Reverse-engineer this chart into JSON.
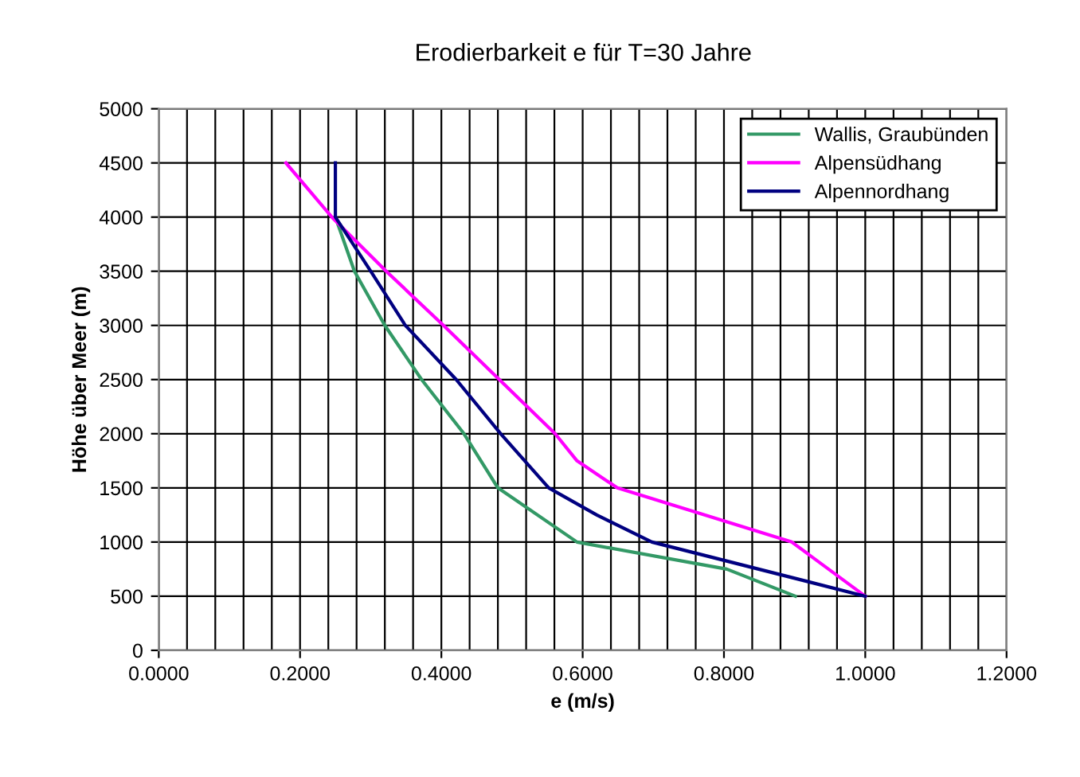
{
  "chart_data": {
    "type": "line",
    "title": "Erodierbarkeit e für T=30 Jahre",
    "xlabel": "e (m/s)",
    "ylabel": "Höhe über Meer (m)",
    "xlim": [
      0,
      1.2
    ],
    "ylim": [
      0,
      5000
    ],
    "xticks": [
      {
        "value": 0,
        "label": "0.0000"
      },
      {
        "value": 0.04,
        "label": null
      },
      {
        "value": 0.08,
        "label": null
      },
      {
        "value": 0.12,
        "label": null
      },
      {
        "value": 0.16,
        "label": null
      },
      {
        "value": 0.2,
        "label": "0.2000"
      },
      {
        "value": 0.24,
        "label": null
      },
      {
        "value": 0.28,
        "label": null
      },
      {
        "value": 0.32,
        "label": null
      },
      {
        "value": 0.36,
        "label": null
      },
      {
        "value": 0.4,
        "label": "0.4000"
      },
      {
        "value": 0.44,
        "label": null
      },
      {
        "value": 0.48,
        "label": null
      },
      {
        "value": 0.52,
        "label": null
      },
      {
        "value": 0.56,
        "label": null
      },
      {
        "value": 0.6,
        "label": "0.6000"
      },
      {
        "value": 0.64,
        "label": null
      },
      {
        "value": 0.68,
        "label": null
      },
      {
        "value": 0.72,
        "label": null
      },
      {
        "value": 0.76,
        "label": null
      },
      {
        "value": 0.8,
        "label": "0.8000"
      },
      {
        "value": 0.84,
        "label": null
      },
      {
        "value": 0.88,
        "label": null
      },
      {
        "value": 0.92,
        "label": null
      },
      {
        "value": 0.96,
        "label": null
      },
      {
        "value": 1.0,
        "label": "1.0000"
      },
      {
        "value": 1.04,
        "label": null
      },
      {
        "value": 1.08,
        "label": null
      },
      {
        "value": 1.12,
        "label": null
      },
      {
        "value": 1.16,
        "label": null
      },
      {
        "value": 1.2,
        "label": "1.2000"
      }
    ],
    "yticks": [
      0,
      500,
      1000,
      1500,
      2000,
      2500,
      3000,
      3500,
      4000,
      4500,
      5000
    ],
    "grid": true,
    "legend": "top right",
    "marker": "none",
    "line_style": "solid",
    "series": [
      {
        "name": "Wallis, Graubünden",
        "color": "#339966",
        "x": [
          0.25,
          0.277,
          0.32,
          0.372,
          0.432,
          0.48,
          0.592,
          0.804,
          0.901
        ],
        "values": [
          4000,
          3500,
          3000,
          2500,
          2000,
          1500,
          1000,
          750,
          500
        ]
      },
      {
        "name": "Alpensüdhang",
        "color": "#ff00ff",
        "x": [
          0.18,
          0.245,
          0.322,
          0.403,
          0.482,
          0.561,
          0.592,
          0.649,
          0.896,
          1.0
        ],
        "values": [
          4500,
          4000,
          3500,
          3000,
          2500,
          2000,
          1750,
          1500,
          1000,
          500
        ]
      },
      {
        "name": "Alpennordhang",
        "color": "#000080",
        "x": [
          0.25,
          0.25,
          0.3,
          0.349,
          0.421,
          0.484,
          0.552,
          0.62,
          0.698,
          1.0
        ],
        "values": [
          4500,
          4000,
          3500,
          3000,
          2500,
          2000,
          1500,
          1250,
          1000,
          500
        ]
      }
    ]
  }
}
